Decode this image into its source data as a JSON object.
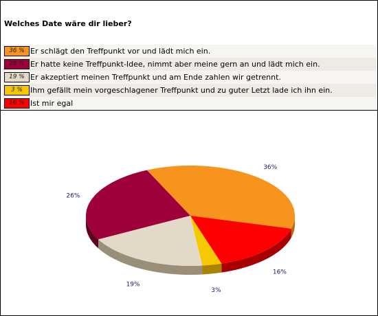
{
  "question": "Welches Date wäre dir lieber?",
  "legend": [
    {
      "pct": "36 %",
      "label": "Er schlägt den Treffpunkt vor und lädt mich ein.",
      "color": "#f7941d"
    },
    {
      "pct": "26 %",
      "label": "Er hatte keine Treffpunkt-Idee, nimmt aber meine gern an und lädt mich ein.",
      "color": "#9e0039"
    },
    {
      "pct": "19 %",
      "label": "Er akzeptiert meinen Treffpunkt und am Ende zahlen wir getrennt.",
      "color": "#e2d9c8"
    },
    {
      "pct": "3 %",
      "label": "Ihm gefällt mein vorgeschlagener Treffpunkt und zu guter Letzt lade ich ihn ein.",
      "color": "#f6c800"
    },
    {
      "pct": "16 %",
      "label": "Ist mir egal",
      "color": "#ff0000"
    }
  ],
  "chart_data": {
    "type": "pie",
    "title": "Welches Date wäre dir lieber?",
    "categories": [
      "Er schlägt den Treffpunkt vor und lädt mich ein.",
      "Er hatte keine Treffpunkt-Idee, nimmt aber meine gern an und lädt mich ein.",
      "Er akzeptiert meinen Treffpunkt und am Ende zahlen wir getrennt.",
      "Ihm gefällt mein vorgeschlagener Treffpunkt und zu guter Letzt lade ich ihn ein.",
      "Ist mir egal"
    ],
    "values": [
      36,
      26,
      19,
      3,
      16
    ],
    "data_labels": [
      "36%",
      "26%",
      "19%",
      "3%",
      "16%"
    ],
    "colors": [
      "#f7941d",
      "#9e0039",
      "#e2d9c8",
      "#f6c800",
      "#ff0000"
    ],
    "side_colors": [
      "#b86c10",
      "#5e0022",
      "#9a8e78",
      "#a88400",
      "#a80000"
    ],
    "style": "3d-tilted",
    "legend_position": "top"
  }
}
